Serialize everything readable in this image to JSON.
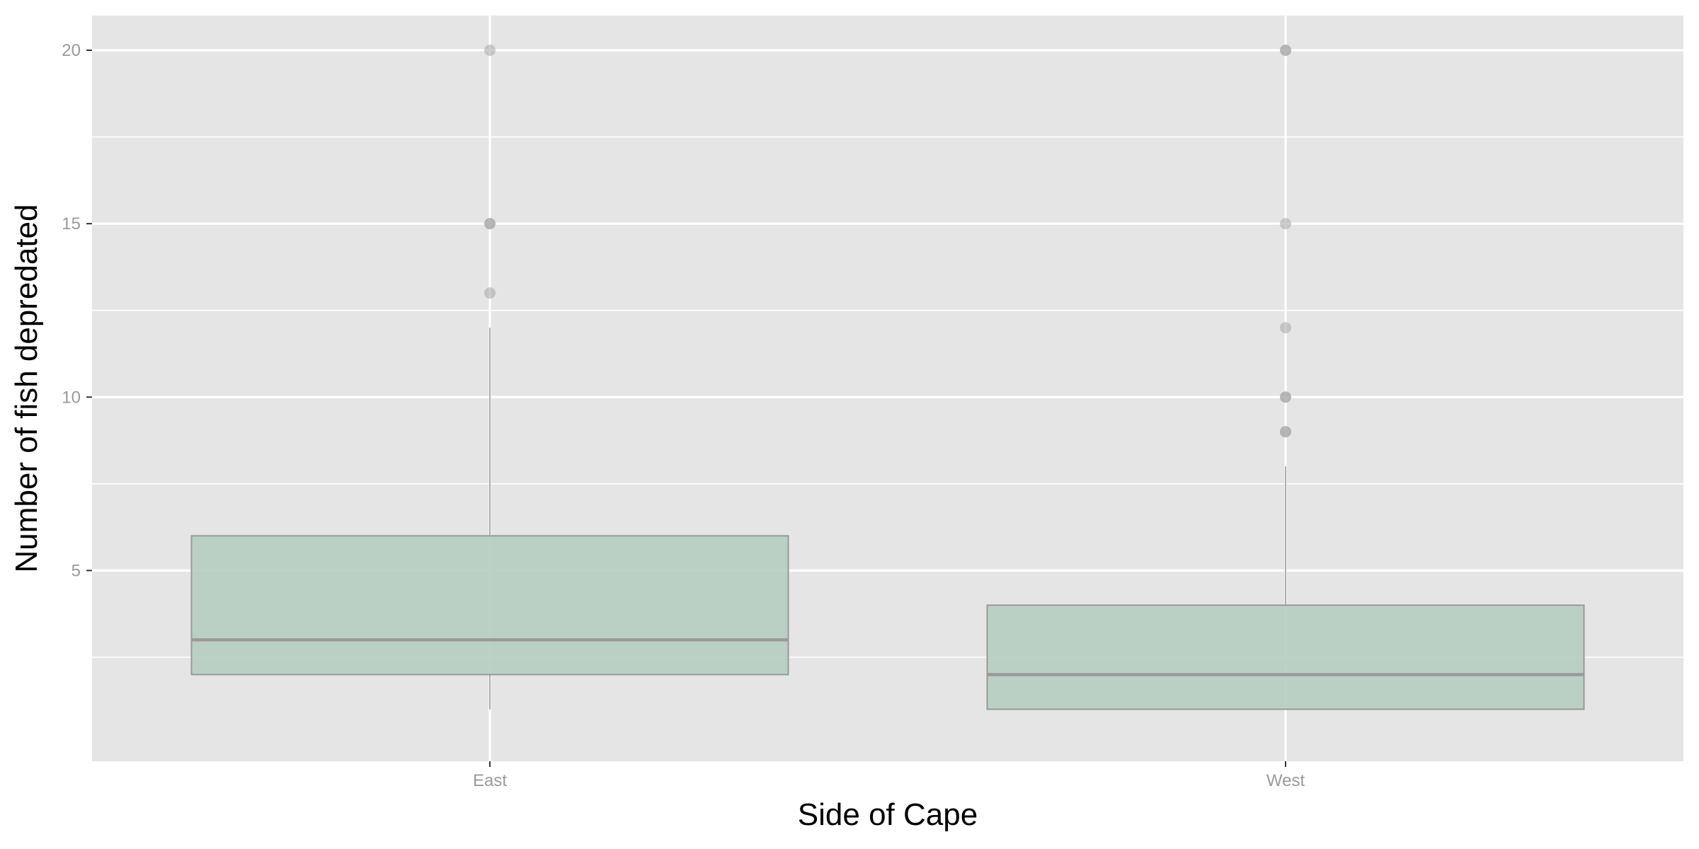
{
  "chart_data": {
    "type": "boxplot",
    "title": "",
    "xlabel": "Side of Cape",
    "ylabel": "Number of fish depredated",
    "categories": [
      "East",
      "West"
    ],
    "ylim": [
      -0.5,
      21
    ],
    "yticks": [
      5,
      10,
      15,
      20
    ],
    "grid": true,
    "boxes": [
      {
        "category": "East",
        "min": 1,
        "q1": 2,
        "median": 3,
        "q3": 6,
        "max": 12,
        "outliers": [
          13,
          15,
          15,
          20
        ]
      },
      {
        "category": "West",
        "min": 1,
        "q1": 1,
        "median": 2,
        "q3": 4,
        "max": 8,
        "outliers": [
          9,
          9,
          10,
          10,
          12,
          15,
          20,
          20
        ]
      }
    ],
    "colors": {
      "panel_background": "#e5e5e5",
      "grid": "#ffffff",
      "box_fill": "#b5cdc1",
      "box_stroke": "#999999",
      "median": "#999999",
      "whisker": "#777777",
      "outlier": "#a6a6a6",
      "tick_label": "#9a9a9a",
      "tick_mark": "#333333"
    }
  }
}
